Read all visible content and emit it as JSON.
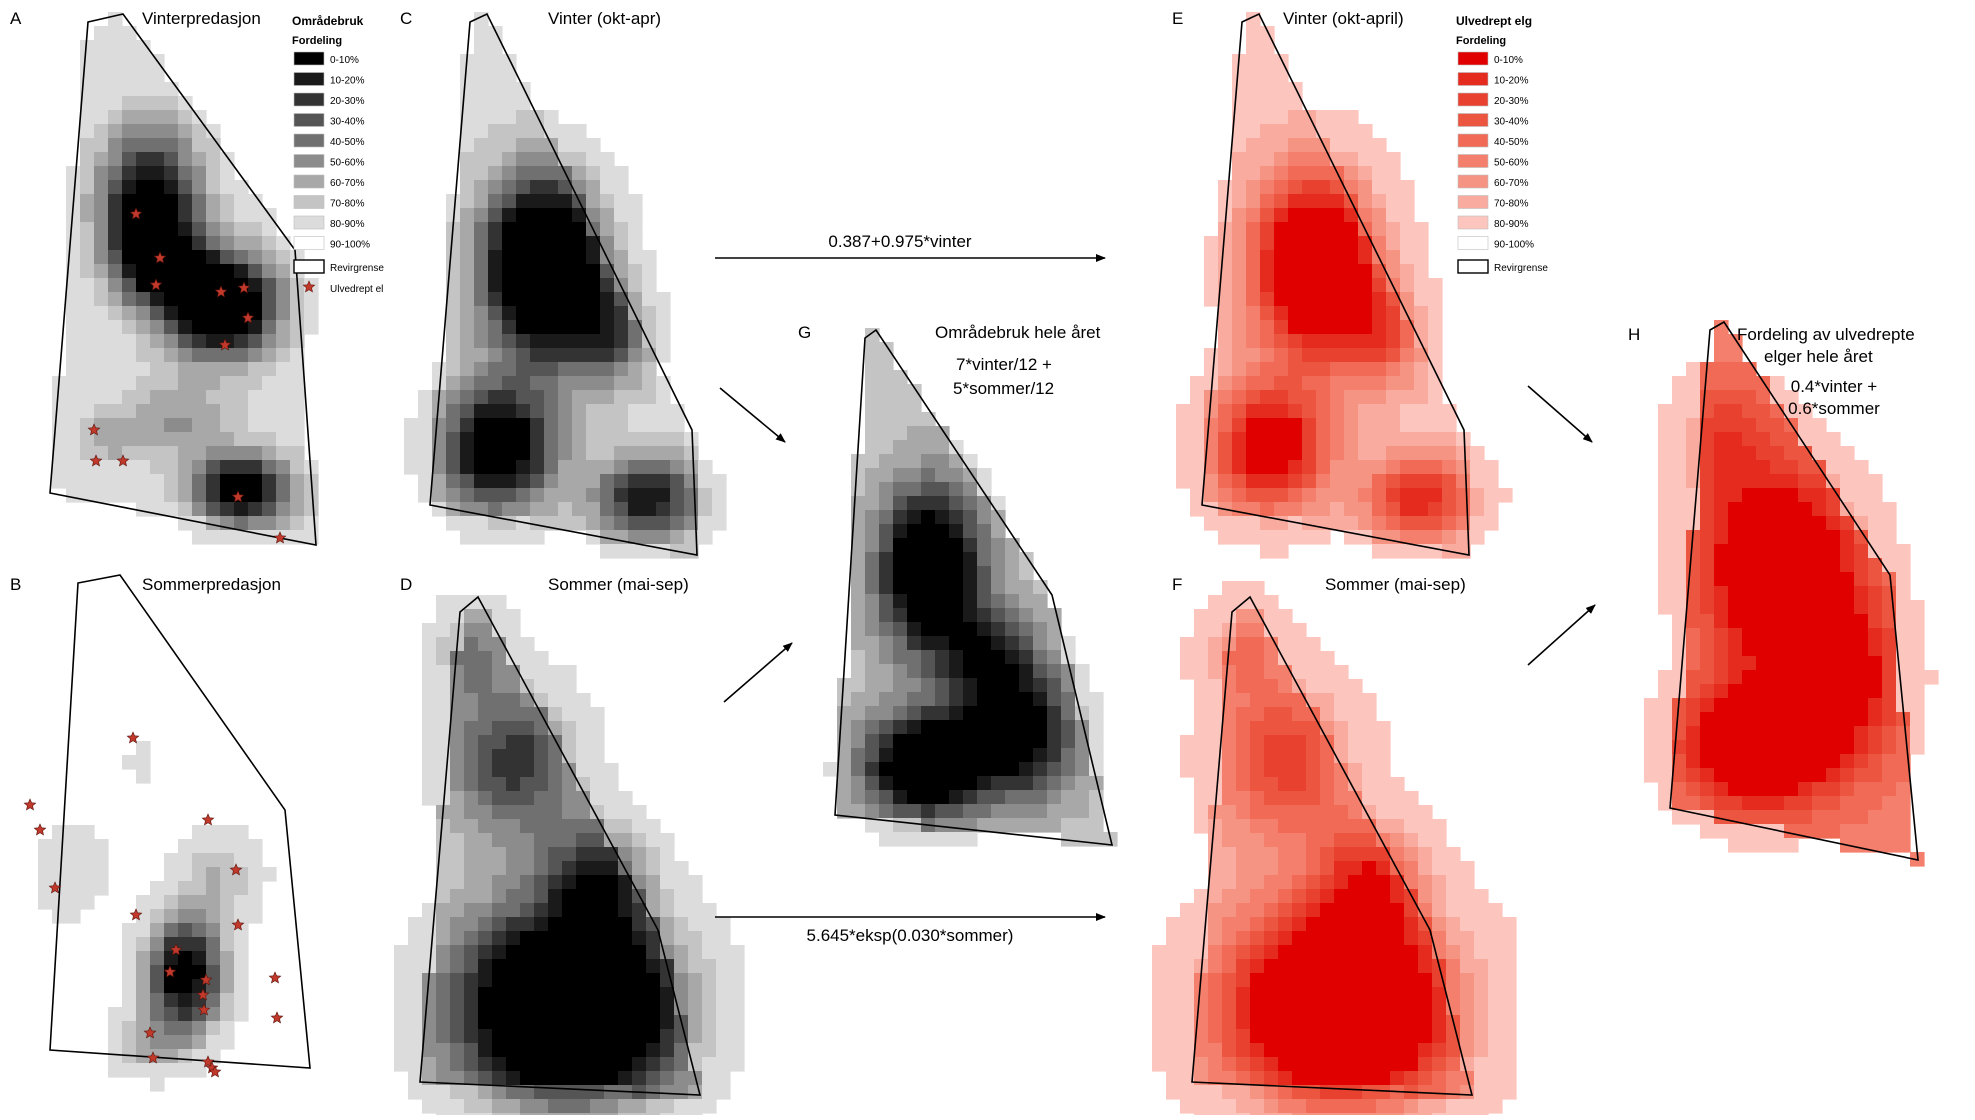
{
  "panels": [
    {
      "letter": "A",
      "title_lines": [
        "Vinterpredasjon"
      ],
      "ramp": "gray",
      "shape": "A",
      "stars": "winter"
    },
    {
      "letter": "B",
      "title_lines": [
        "Sommerpredasjon"
      ],
      "ramp": "gray",
      "shape": "B",
      "stars": "summer"
    },
    {
      "letter": "C",
      "title_lines": [
        "Vinter (okt-apr)"
      ],
      "ramp": "gray",
      "shape": "C"
    },
    {
      "letter": "D",
      "title_lines": [
        "Sommer (mai-sep)"
      ],
      "ramp": "gray",
      "shape": "D"
    },
    {
      "letter": "G",
      "title_lines": [
        "Områdebruk hele året",
        "7*vinter/12 +",
        "5*sommer/12"
      ],
      "ramp": "gray",
      "shape": "G"
    },
    {
      "letter": "E",
      "title_lines": [
        "Vinter (okt-april)"
      ],
      "ramp": "red",
      "shape": "C"
    },
    {
      "letter": "F",
      "title_lines": [
        "Sommer (mai-sep)"
      ],
      "ramp": "red",
      "shape": "D"
    },
    {
      "letter": "H",
      "title_lines": [
        "Fordeling av ulvedrepte",
        "elger hele året",
        "0.4*vinter +",
        "0.6*sommer"
      ],
      "ramp": "red",
      "shape": "H"
    }
  ],
  "arrows": [
    {
      "label": "0.387+0.975*vinter"
    },
    {
      "label": "5.645*eksp(0.030*sommer)"
    },
    {
      "label": ""
    },
    {
      "label": ""
    },
    {
      "label": ""
    },
    {
      "label": ""
    }
  ],
  "legend_gray": {
    "title": "Områdebruk",
    "subtitle": "Fordeling",
    "classes": [
      "0-10%",
      "10-20%",
      "20-30%",
      "30-40%",
      "40-50%",
      "50-60%",
      "60-70%",
      "70-80%",
      "80-90%",
      "90-100%"
    ],
    "colors": [
      "#000000",
      "#1a1a1a",
      "#333333",
      "#555555",
      "#707070",
      "#8c8c8c",
      "#a8a8a8",
      "#c4c4c4",
      "#dcdcdc",
      "#ffffff"
    ],
    "boundary_label": "Revirgrense",
    "star_label": "Ulvedrept el"
  },
  "legend_red": {
    "title": "Ulvedrept elg",
    "subtitle": "Fordeling",
    "classes": [
      "0-10%",
      "10-20%",
      "20-30%",
      "30-40%",
      "40-50%",
      "50-60%",
      "60-70%",
      "70-80%",
      "80-90%",
      "90-100%"
    ],
    "colors": [
      "#e00000",
      "#e42b1e",
      "#e8412f",
      "#ec5640",
      "#f06a55",
      "#f47f6c",
      "#f69484",
      "#f9ab9f",
      "#fcc6bf",
      "#ffffff"
    ],
    "boundary_label": "Revirgrense"
  },
  "colors": {
    "star": "#c0392b",
    "outline": "#000000"
  }
}
